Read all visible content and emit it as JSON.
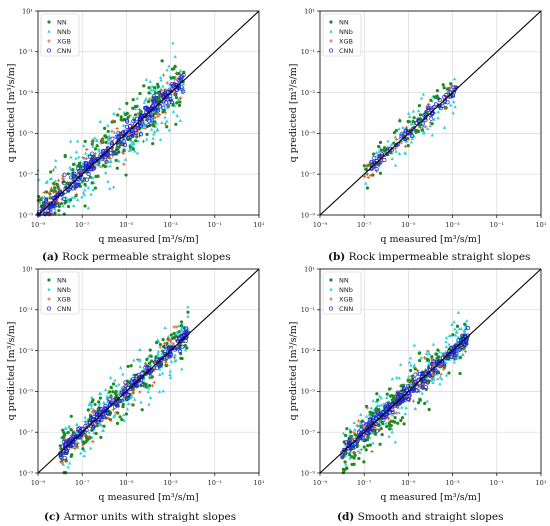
{
  "chart_data": [
    {
      "type": "scatter",
      "caption_label": "(a)",
      "caption_text": "Rock permeable straight slopes",
      "xlabel": "q measured [m³/s/m]",
      "ylabel": "q predicted [m³/s/m]",
      "xscale": "log",
      "yscale": "log",
      "xlim": [
        1e-09,
        10
      ],
      "ylim": [
        1e-09,
        10
      ],
      "ticks": [
        1e-09,
        1e-07,
        1e-05,
        0.001,
        0.1,
        10
      ],
      "tick_labels": [
        "10⁻⁹",
        "10⁻⁷",
        "10⁻⁵",
        "10⁻³",
        "10⁻¹",
        "10¹"
      ],
      "grid": true,
      "reference_line": "y = x",
      "legend": [
        "NN",
        "NNb",
        "XGB",
        "CNN"
      ],
      "legend_position": "top-left",
      "point_cloud": {
        "x_log_range": [
          -9,
          -2.4
        ],
        "spread": 0.7,
        "density": 1.0
      }
    },
    {
      "type": "scatter",
      "caption_label": "(b)",
      "caption_text": "Rock impermeable straight slopes",
      "xlabel": "q measured [m³/s/m]",
      "ylabel": "q predicted [m³/s/m]",
      "xscale": "log",
      "yscale": "log",
      "xlim": [
        1e-09,
        10
      ],
      "ylim": [
        1e-09,
        10
      ],
      "ticks": [
        1e-09,
        1e-07,
        1e-05,
        0.001,
        0.1,
        10
      ],
      "tick_labels": [
        "10⁻⁹",
        "10⁻⁷",
        "10⁻⁵",
        "10⁻³",
        "10⁻¹",
        "10¹"
      ],
      "grid": true,
      "reference_line": "y = x",
      "legend": [
        "NN",
        "NNb",
        "XGB",
        "CNN"
      ],
      "legend_position": "top-left",
      "point_cloud": {
        "x_log_range": [
          -7,
          -2.8
        ],
        "spread": 0.45,
        "density": 0.3
      }
    },
    {
      "type": "scatter",
      "caption_label": "(c)",
      "caption_text": "Armor units with straight slopes",
      "xlabel": "q measured [m³/s/m]",
      "ylabel": "q predicted [m³/s/m]",
      "xscale": "log",
      "yscale": "log",
      "xlim": [
        1e-09,
        10
      ],
      "ylim": [
        1e-09,
        10
      ],
      "ticks": [
        1e-09,
        1e-07,
        1e-05,
        0.001,
        0.1,
        10
      ],
      "tick_labels": [
        "10⁻⁹",
        "10⁻⁷",
        "10⁻⁵",
        "10⁻³",
        "10⁻¹",
        "10¹"
      ],
      "grid": true,
      "reference_line": "y = x",
      "legend": [
        "NN",
        "NNb",
        "XGB",
        "CNN"
      ],
      "legend_position": "top-left",
      "point_cloud": {
        "x_log_range": [
          -8,
          -2.2
        ],
        "spread": 0.55,
        "density": 0.8
      }
    },
    {
      "type": "scatter",
      "caption_label": "(d)",
      "caption_text": "Smooth and straight slopes",
      "xlabel": "q measured [m³/s/m]",
      "ylabel": "q predicted [m³/s/m]",
      "xscale": "log",
      "yscale": "log",
      "xlim": [
        1e-09,
        10
      ],
      "ylim": [
        1e-09,
        10
      ],
      "ticks": [
        1e-09,
        1e-07,
        1e-05,
        0.001,
        0.1,
        10
      ],
      "tick_labels": [
        "10⁻⁹",
        "10⁻⁷",
        "10⁻⁵",
        "10⁻³",
        "10⁻¹",
        "10¹"
      ],
      "grid": true,
      "reference_line": "y = x",
      "legend": [
        "NN",
        "NNb",
        "XGB",
        "CNN"
      ],
      "legend_position": "top-left",
      "point_cloud": {
        "x_log_range": [
          -8,
          -2.3
        ],
        "spread": 0.55,
        "density": 0.9
      }
    }
  ],
  "series_styles": [
    {
      "name": "NN",
      "color": "#1f8a1f",
      "marker": "filled-circle"
    },
    {
      "name": "NNb",
      "color": "#2ad1d6",
      "marker": "triangle"
    },
    {
      "name": "XGB",
      "color": "#d0551f",
      "marker": "plus"
    },
    {
      "name": "CNN",
      "color": "#1f1fd6",
      "marker": "open-circle"
    }
  ]
}
